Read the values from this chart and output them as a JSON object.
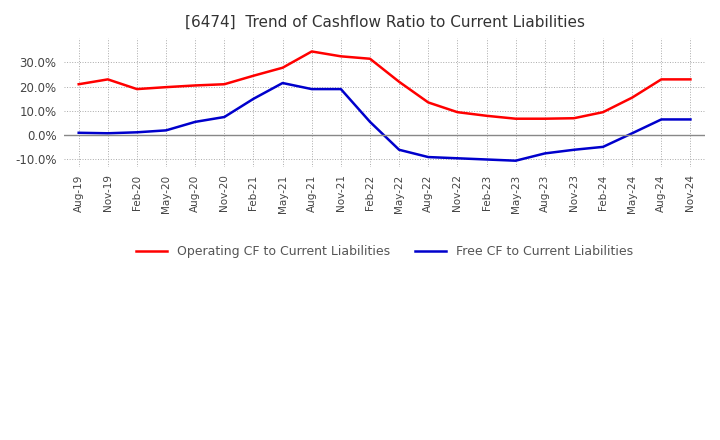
{
  "title": "[6474]  Trend of Cashflow Ratio to Current Liabilities",
  "title_fontsize": 11,
  "background_color": "#ffffff",
  "grid_color": "#aaaaaa",
  "zero_line_color": "#888888",
  "operating_cf_color": "#ff0000",
  "free_cf_color": "#0000cc",
  "x_labels": [
    "Aug-19",
    "Nov-19",
    "Feb-20",
    "May-20",
    "Aug-20",
    "Nov-20",
    "Feb-21",
    "May-21",
    "Aug-21",
    "Nov-21",
    "Feb-22",
    "May-22",
    "Aug-22",
    "Nov-22",
    "Feb-23",
    "May-23",
    "Aug-23",
    "Nov-23",
    "Feb-24",
    "May-24",
    "Aug-24",
    "Nov-24"
  ],
  "operating_cf": [
    0.21,
    0.23,
    0.19,
    0.198,
    0.205,
    0.21,
    0.245,
    0.278,
    0.345,
    0.325,
    0.315,
    0.22,
    0.135,
    0.095,
    0.08,
    0.068,
    0.068,
    0.07,
    0.095,
    0.155,
    0.23,
    0.23
  ],
  "free_cf": [
    0.01,
    0.008,
    0.012,
    0.02,
    0.055,
    0.075,
    0.15,
    0.215,
    0.19,
    0.19,
    0.055,
    -0.06,
    -0.09,
    -0.095,
    -0.1,
    -0.105,
    -0.075,
    -0.06,
    -0.048,
    0.008,
    0.065,
    0.065
  ],
  "ylim": [
    -0.13,
    0.4
  ],
  "yticks": [
    -0.1,
    0.0,
    0.1,
    0.2,
    0.3
  ],
  "ytick_labels": [
    "-10.0%",
    "0.0%",
    "10.0%",
    "20.0%",
    "30.0%"
  ],
  "legend_op": "Operating CF to Current Liabilities",
  "legend_free": "Free CF to Current Liabilities"
}
